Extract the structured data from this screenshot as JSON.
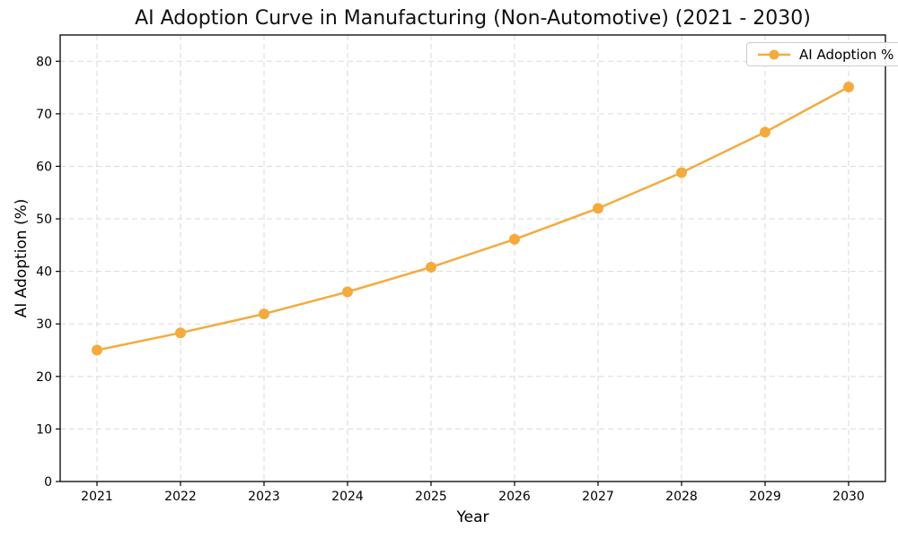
{
  "chart_data": {
    "type": "line",
    "title": "AI Adoption Curve in Manufacturing (Non-Automotive) (2021 - 2030)",
    "xlabel": "Year",
    "ylabel": "AI Adoption (%)",
    "categories": [
      "2021",
      "2022",
      "2023",
      "2024",
      "2025",
      "2026",
      "2027",
      "2028",
      "2029",
      "2030"
    ],
    "series": [
      {
        "name": "AI Adoption %",
        "color": "#F4AB3E",
        "marker": "circle",
        "values": [
          25.0,
          28.3,
          31.9,
          36.1,
          40.8,
          46.1,
          52.0,
          58.8,
          66.5,
          75.1
        ]
      }
    ],
    "ylim": [
      0,
      85
    ],
    "yticks": [
      0,
      10,
      20,
      30,
      40,
      50,
      60,
      70,
      80
    ],
    "grid": true,
    "grid_linestyle": "dashed",
    "legend_position": "upper right"
  },
  "style": {
    "line_color": "#F4AB3E",
    "grid_color": "#DADADA",
    "spine_color": "#000000",
    "tick_label_color": "#000000",
    "background": "#FFFFFF"
  }
}
